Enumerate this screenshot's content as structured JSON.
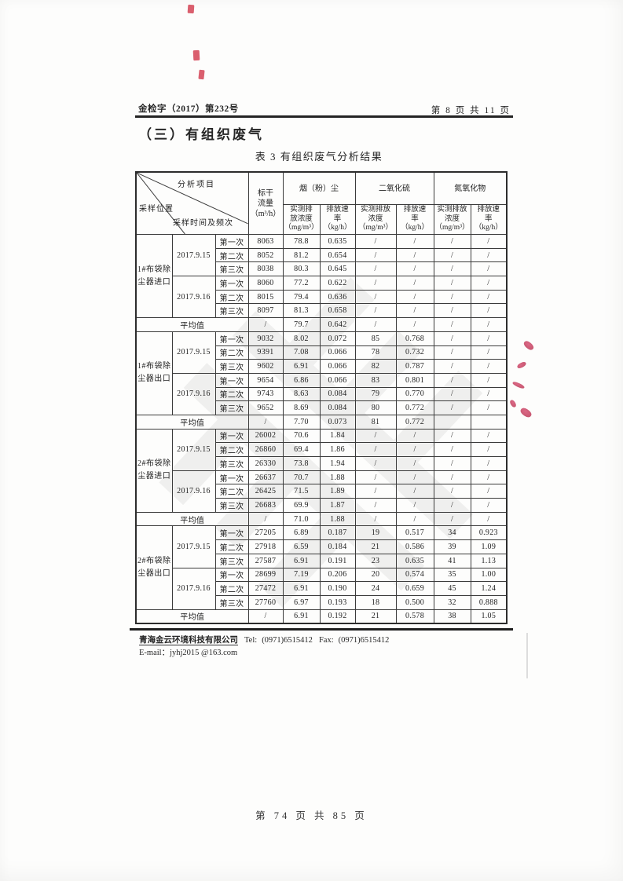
{
  "header": {
    "doc_number": "金检字（2017）第232号",
    "page_info": "第 8 页 共 11 页"
  },
  "section_title": "（三）有组织废气",
  "table_title": "表 3 有组织废气分析结果",
  "table": {
    "corner": {
      "top": "分析项目",
      "middle": "采样时间及频次",
      "bottom": "采样位置"
    },
    "flow_header": [
      "标干",
      "流量",
      "（m³/h）"
    ],
    "groups": [
      {
        "label": "烟（粉）尘",
        "sub": [
          [
            "实测排",
            "放浓度",
            "（mg/m³）"
          ],
          [
            "排放速",
            "率",
            "（kg/h）"
          ]
        ]
      },
      {
        "label": "二氧化硫",
        "sub": [
          [
            "实测排放",
            "浓度",
            "（mg/m³）"
          ],
          [
            "排放速",
            "率",
            "（kg/h）"
          ]
        ]
      },
      {
        "label": "氮氧化物",
        "sub": [
          [
            "实测排放",
            "浓度",
            "（mg/m³）"
          ],
          [
            "排放速",
            "率",
            "（kg/h）"
          ]
        ]
      }
    ],
    "average_label": "平均值",
    "blocks": [
      {
        "location": [
          "1#布袋除",
          "尘器进口"
        ],
        "dates": [
          "2017.9.15",
          "2017.9.16"
        ],
        "rows": [
          [
            "第一次",
            "8063",
            "78.8",
            "0.635",
            "/",
            "/",
            "/",
            "/"
          ],
          [
            "第二次",
            "8052",
            "81.2",
            "0.654",
            "/",
            "/",
            "/",
            "/"
          ],
          [
            "第三次",
            "8038",
            "80.3",
            "0.645",
            "/",
            "/",
            "/",
            "/"
          ],
          [
            "第一次",
            "8060",
            "77.2",
            "0.622",
            "/",
            "/",
            "/",
            "/"
          ],
          [
            "第二次",
            "8015",
            "79.4",
            "0.636",
            "/",
            "/",
            "/",
            "/"
          ],
          [
            "第三次",
            "8097",
            "81.3",
            "0.658",
            "/",
            "/",
            "/",
            "/"
          ]
        ],
        "average": [
          "/",
          "79.7",
          "0.642",
          "/",
          "/",
          "/",
          "/"
        ]
      },
      {
        "location": [
          "1#布袋除",
          "尘器出口"
        ],
        "dates": [
          "2017.9.15",
          "2017.9.16"
        ],
        "rows": [
          [
            "第一次",
            "9032",
            "8.02",
            "0.072",
            "85",
            "0.768",
            "/",
            "/"
          ],
          [
            "第二次",
            "9391",
            "7.08",
            "0.066",
            "78",
            "0.732",
            "/",
            "/"
          ],
          [
            "第三次",
            "9602",
            "6.91",
            "0.066",
            "82",
            "0.787",
            "/",
            "/"
          ],
          [
            "第一次",
            "9654",
            "6.86",
            "0.066",
            "83",
            "0.801",
            "/",
            "/"
          ],
          [
            "第二次",
            "9743",
            "8.63",
            "0.084",
            "79",
            "0.770",
            "/",
            "/"
          ],
          [
            "第三次",
            "9652",
            "8.69",
            "0.084",
            "80",
            "0.772",
            "/",
            "/"
          ]
        ],
        "average": [
          "/",
          "7.70",
          "0.073",
          "81",
          "0.772",
          "",
          ""
        ]
      },
      {
        "location": [
          "2#布袋除",
          "尘器进口"
        ],
        "dates": [
          "2017.9.15",
          "2017.9.16"
        ],
        "rows": [
          [
            "第一次",
            "26002",
            "70.6",
            "1.84",
            "/",
            "/",
            "/",
            "/"
          ],
          [
            "第二次",
            "26860",
            "69.4",
            "1.86",
            "/",
            "/",
            "/",
            "/"
          ],
          [
            "第三次",
            "26330",
            "73.8",
            "1.94",
            "/",
            "/",
            "/",
            "/"
          ],
          [
            "第一次",
            "26637",
            "70.7",
            "1.88",
            "/",
            "/",
            "/",
            "/"
          ],
          [
            "第二次",
            "26425",
            "71.5",
            "1.89",
            "/",
            "/",
            "/",
            "/"
          ],
          [
            "第三次",
            "26683",
            "69.9",
            "1.87",
            "/",
            "/",
            "/",
            "/"
          ]
        ],
        "average": [
          "/",
          "71.0",
          "1.88",
          "/",
          "/",
          "/",
          "/"
        ]
      },
      {
        "location": [
          "2#布袋除",
          "尘器出口"
        ],
        "dates": [
          "2017.9.15",
          "2017.9.16"
        ],
        "rows": [
          [
            "第一次",
            "27205",
            "6.89",
            "0.187",
            "19",
            "0.517",
            "34",
            "0.923"
          ],
          [
            "第二次",
            "27918",
            "6.59",
            "0.184",
            "21",
            "0.586",
            "39",
            "1.09"
          ],
          [
            "第三次",
            "27587",
            "6.91",
            "0.191",
            "23",
            "0.635",
            "41",
            "1.13"
          ],
          [
            "第一次",
            "28699",
            "7.19",
            "0.206",
            "20",
            "0.574",
            "35",
            "1.00"
          ],
          [
            "第二次",
            "27472",
            "6.91",
            "0.190",
            "24",
            "0.659",
            "45",
            "1.24"
          ],
          [
            "第三次",
            "27760",
            "6.97",
            "0.193",
            "18",
            "0.500",
            "32",
            "0.888"
          ]
        ],
        "average": [
          "/",
          "6.91",
          "0.192",
          "21",
          "0.578",
          "38",
          "1.05"
        ]
      }
    ]
  },
  "footer": {
    "company": "青海金云环境科技有限公司",
    "tel_label": "Tel:",
    "tel": "(0971)6515412",
    "fax_label": "Fax:",
    "fax": "(0971)6515412",
    "email": "E-mail：jyhj2015 @163.com"
  },
  "page_footer": "第 74 页 共 85 页",
  "artifacts": {
    "watermark_char": "非"
  },
  "colors": {
    "ink": "#262626",
    "stamp_red": "#c23a55",
    "watermark_gray": "#919191"
  }
}
